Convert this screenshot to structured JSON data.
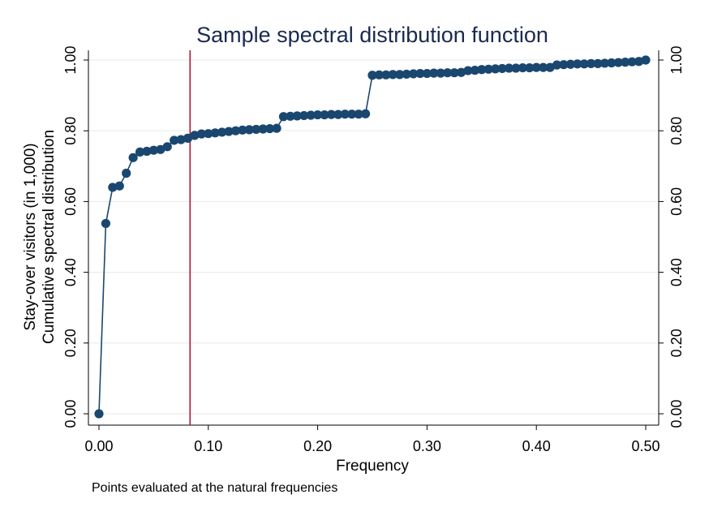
{
  "chart_data": {
    "type": "line",
    "title": "Sample spectral distribution function",
    "xlabel": "Frequency",
    "ylabel_lines": [
      "Stay-over visitors (in 1,000)",
      "Cumulative spectral distribution"
    ],
    "note": "Points evaluated at the natural frequencies",
    "xlim": [
      0,
      0.5
    ],
    "ylim": [
      0,
      1
    ],
    "x_ticks": [
      0,
      0.1,
      0.2,
      0.3,
      0.4,
      0.5
    ],
    "x_tick_labels": [
      "0.00",
      "0.10",
      "0.20",
      "0.30",
      "0.40",
      "0.50"
    ],
    "y_ticks": [
      0,
      0.2,
      0.4,
      0.6,
      0.8,
      1.0
    ],
    "y_tick_labels": [
      "0.00",
      "0.20",
      "0.40",
      "0.60",
      "0.80",
      "1.00"
    ],
    "grid": true,
    "reference_line_x": 0.0833,
    "colors": {
      "series": "#1a476f",
      "reference": "#b0173a",
      "title": "#1a2a4f",
      "grid": "#e9edf1"
    },
    "series": [
      {
        "x": [
          0,
          0.00625,
          0.0125,
          0.01875,
          0.025,
          0.03125,
          0.0375,
          0.04375,
          0.05,
          0.05625,
          0.0625,
          0.06875,
          0.075,
          0.08125,
          0.0875,
          0.09375,
          0.1,
          0.10625,
          0.1125,
          0.11875,
          0.125,
          0.13125,
          0.1375,
          0.14375,
          0.15,
          0.15625,
          0.1625,
          0.16875,
          0.175,
          0.18125,
          0.1875,
          0.19375,
          0.2,
          0.20625,
          0.2125,
          0.21875,
          0.225,
          0.23125,
          0.2375,
          0.24375,
          0.25,
          0.25625,
          0.2625,
          0.26875,
          0.275,
          0.28125,
          0.2875,
          0.29375,
          0.3,
          0.30625,
          0.3125,
          0.31875,
          0.325,
          0.33125,
          0.3375,
          0.34375,
          0.35,
          0.35625,
          0.3625,
          0.36875,
          0.375,
          0.38125,
          0.3875,
          0.39375,
          0.4,
          0.40625,
          0.4125,
          0.41875,
          0.425,
          0.43125,
          0.4375,
          0.44375,
          0.45,
          0.45625,
          0.4625,
          0.46875,
          0.475,
          0.48125,
          0.4875,
          0.49375,
          0.5
        ],
        "y": [
          0.0,
          0.538,
          0.64,
          0.644,
          0.68,
          0.724,
          0.74,
          0.742,
          0.745,
          0.747,
          0.755,
          0.773,
          0.775,
          0.779,
          0.787,
          0.791,
          0.792,
          0.794,
          0.796,
          0.798,
          0.8,
          0.802,
          0.803,
          0.804,
          0.805,
          0.806,
          0.807,
          0.84,
          0.841,
          0.842,
          0.843,
          0.844,
          0.845,
          0.845,
          0.846,
          0.846,
          0.847,
          0.847,
          0.847,
          0.848,
          0.957,
          0.958,
          0.958,
          0.959,
          0.959,
          0.96,
          0.961,
          0.962,
          0.962,
          0.963,
          0.963,
          0.964,
          0.964,
          0.965,
          0.97,
          0.971,
          0.973,
          0.974,
          0.975,
          0.976,
          0.977,
          0.977,
          0.978,
          0.978,
          0.979,
          0.979,
          0.979,
          0.986,
          0.987,
          0.988,
          0.989,
          0.989,
          0.99,
          0.99,
          0.991,
          0.992,
          0.993,
          0.994,
          0.995,
          0.996,
          1.0
        ]
      }
    ]
  }
}
